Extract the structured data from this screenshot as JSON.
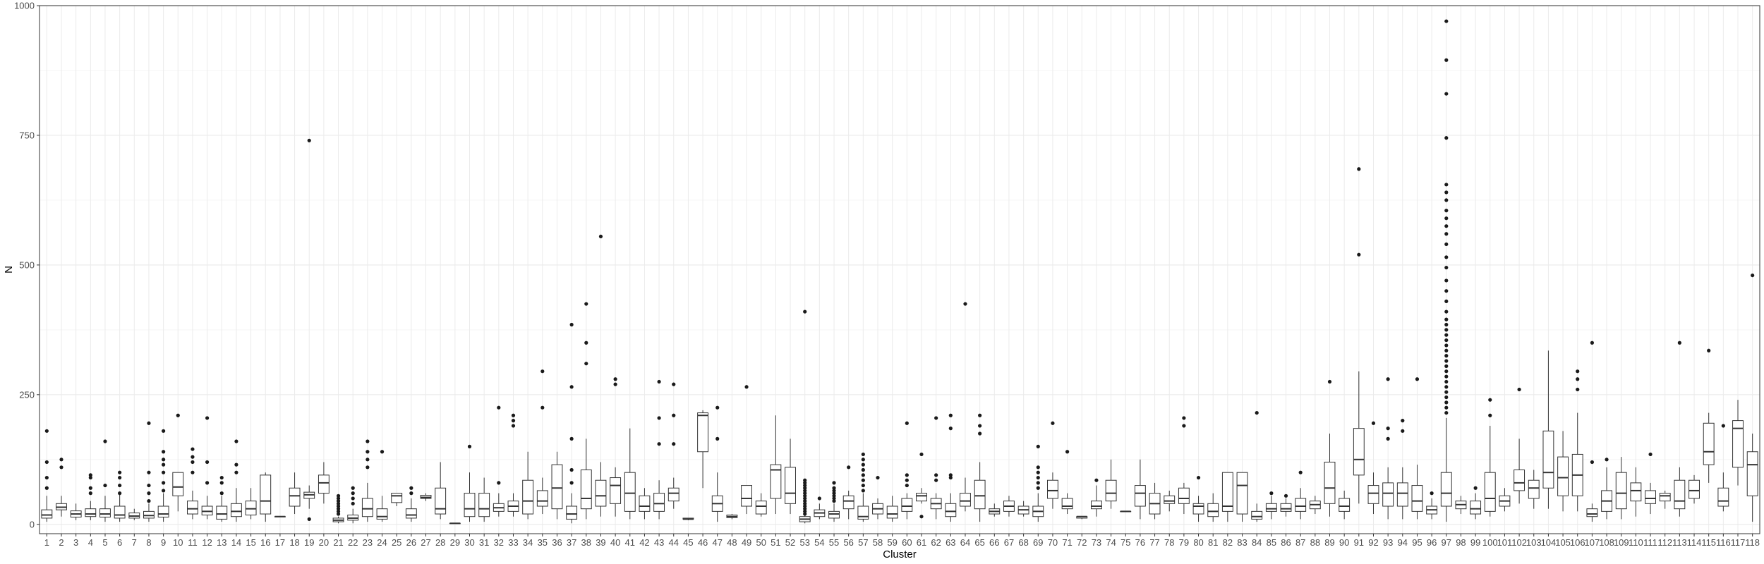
{
  "chart_data": {
    "type": "boxplot",
    "xlabel": "Cluster",
    "ylabel": "N",
    "ylim": [
      -18,
      1000
    ],
    "y_ticks": [
      0,
      250,
      500,
      750,
      1000
    ],
    "grid": true,
    "legend": "none",
    "colors": {
      "box_fill": "#ffffff",
      "box_stroke": "#333333",
      "outlier": "#1a1a1a",
      "grid_major": "#ebebeb",
      "grid_minor": "#f5f5f5",
      "panel_border": "#333333"
    },
    "categories": [
      "1",
      "2",
      "3",
      "4",
      "5",
      "6",
      "7",
      "8",
      "9",
      "10",
      "11",
      "12",
      "13",
      "14",
      "15",
      "16",
      "17",
      "18",
      "19",
      "20",
      "21",
      "22",
      "23",
      "24",
      "25",
      "26",
      "27",
      "28",
      "29",
      "30",
      "31",
      "32",
      "33",
      "34",
      "35",
      "36",
      "37",
      "38",
      "39",
      "40",
      "41",
      "42",
      "43",
      "44",
      "45",
      "46",
      "47",
      "48",
      "49",
      "50",
      "51",
      "52",
      "53",
      "54",
      "55",
      "56",
      "57",
      "58",
      "59",
      "60",
      "61",
      "62",
      "63",
      "64",
      "65",
      "66",
      "67",
      "68",
      "69",
      "70",
      "71",
      "72",
      "73",
      "74",
      "75",
      "76",
      "77",
      "78",
      "79",
      "80",
      "81",
      "82",
      "83",
      "84",
      "85",
      "86",
      "87",
      "88",
      "89",
      "90",
      "91",
      "92",
      "93",
      "94",
      "95",
      "96",
      "97",
      "98",
      "99",
      "100",
      "101",
      "102",
      "103",
      "104",
      "105",
      "106",
      "107",
      "108",
      "109",
      "110",
      "111",
      "112",
      "113",
      "114",
      "115",
      "116",
      "117",
      "118"
    ],
    "boxes": [
      [
        5,
        12,
        18,
        28,
        55,
        [
          120,
          180,
          70,
          90
        ]
      ],
      [
        15,
        28,
        33,
        40,
        55,
        [
          110,
          125
        ]
      ],
      [
        8,
        14,
        20,
        26,
        40,
        []
      ],
      [
        8,
        15,
        20,
        30,
        45,
        [
          60,
          70,
          90,
          95
        ]
      ],
      [
        5,
        14,
        20,
        30,
        55,
        [
          75,
          160
        ]
      ],
      [
        5,
        12,
        18,
        35,
        60,
        [
          60,
          75,
          90,
          100
        ]
      ],
      [
        8,
        12,
        16,
        22,
        30,
        []
      ],
      [
        5,
        12,
        17,
        25,
        40,
        [
          45,
          60,
          75,
          100,
          195
        ]
      ],
      [
        5,
        14,
        20,
        35,
        60,
        [
          65,
          80,
          100,
          115,
          125,
          140,
          180
        ]
      ],
      [
        25,
        55,
        72,
        100,
        100,
        [
          210
        ]
      ],
      [
        10,
        20,
        30,
        45,
        65,
        [
          100,
          120,
          130,
          145
        ]
      ],
      [
        10,
        18,
        25,
        35,
        55,
        [
          80,
          120,
          205
        ]
      ],
      [
        5,
        10,
        20,
        35,
        55,
        [
          60,
          80,
          90
        ]
      ],
      [
        5,
        15,
        25,
        40,
        70,
        [
          100,
          115,
          160
        ]
      ],
      [
        10,
        18,
        30,
        45,
        70,
        []
      ],
      [
        5,
        20,
        45,
        95,
        100,
        []
      ],
      [
        15,
        15,
        15,
        15,
        15,
        []
      ],
      [
        20,
        35,
        55,
        70,
        100,
        []
      ],
      [
        30,
        50,
        57,
        62,
        75,
        [
          10,
          740
        ]
      ],
      [
        40,
        60,
        80,
        95,
        120,
        []
      ],
      [
        2,
        5,
        8,
        12,
        15,
        [
          20,
          25,
          30,
          35,
          40,
          45,
          50,
          55
        ]
      ],
      [
        2,
        8,
        12,
        18,
        30,
        [
          40,
          50,
          60,
          70
        ]
      ],
      [
        5,
        15,
        30,
        50,
        80,
        [
          110,
          125,
          140,
          160
        ]
      ],
      [
        5,
        10,
        15,
        30,
        55,
        [
          140
        ]
      ],
      [
        35,
        42,
        55,
        60,
        60,
        []
      ],
      [
        5,
        12,
        18,
        30,
        50,
        [
          60,
          70
        ]
      ],
      [
        45,
        50,
        52,
        56,
        60,
        []
      ],
      [
        10,
        20,
        30,
        70,
        120,
        []
      ],
      [
        2,
        2,
        2,
        2,
        2,
        []
      ],
      [
        5,
        15,
        30,
        60,
        100,
        [
          150
        ]
      ],
      [
        5,
        15,
        30,
        60,
        90,
        []
      ],
      [
        15,
        25,
        32,
        40,
        60,
        [
          80,
          225
        ]
      ],
      [
        15,
        25,
        35,
        45,
        60,
        [
          190,
          200,
          210
        ]
      ],
      [
        10,
        20,
        45,
        85,
        140,
        []
      ],
      [
        20,
        35,
        45,
        65,
        90,
        [
          225,
          295
        ]
      ],
      [
        10,
        30,
        70,
        115,
        140,
        []
      ],
      [
        2,
        10,
        20,
        35,
        60,
        [
          80,
          105,
          165,
          265,
          385
        ]
      ],
      [
        10,
        30,
        50,
        105,
        165,
        [
          310,
          350,
          425
        ]
      ],
      [
        15,
        35,
        55,
        85,
        120,
        [
          555
        ]
      ],
      [
        15,
        40,
        75,
        90,
        110,
        [
          270,
          280
        ]
      ],
      [
        10,
        25,
        60,
        100,
        185,
        []
      ],
      [
        10,
        25,
        35,
        55,
        70,
        []
      ],
      [
        10,
        25,
        40,
        60,
        85,
        [
          155,
          205,
          275
        ]
      ],
      [
        30,
        45,
        60,
        70,
        90,
        [
          155,
          210,
          270
        ]
      ],
      [
        8,
        10,
        10,
        12,
        12,
        []
      ],
      [
        70,
        140,
        210,
        215,
        220,
        []
      ],
      [
        5,
        25,
        40,
        55,
        100,
        [
          165,
          225
        ]
      ],
      [
        10,
        13,
        15,
        18,
        20,
        []
      ],
      [
        20,
        35,
        50,
        75,
        75,
        [
          265
        ]
      ],
      [
        15,
        20,
        35,
        45,
        60,
        []
      ],
      [
        20,
        50,
        105,
        115,
        210,
        []
      ],
      [
        20,
        40,
        60,
        110,
        165,
        []
      ],
      [
        2,
        5,
        10,
        15,
        30,
        [
          20,
          25,
          30,
          35,
          40,
          45,
          50,
          55,
          60,
          65,
          70,
          75,
          80,
          85,
          410
        ]
      ],
      [
        10,
        15,
        22,
        28,
        40,
        [
          50
        ]
      ],
      [
        5,
        12,
        20,
        25,
        40,
        [
          45,
          50,
          55,
          60,
          65,
          70,
          80
        ]
      ],
      [
        10,
        30,
        45,
        55,
        65,
        [
          110
        ]
      ],
      [
        5,
        10,
        15,
        35,
        60,
        [
          65,
          75,
          85,
          95,
          105,
          115,
          125,
          135
        ]
      ],
      [
        10,
        20,
        30,
        40,
        50,
        [
          90
        ]
      ],
      [
        5,
        12,
        20,
        35,
        55,
        []
      ],
      [
        10,
        25,
        35,
        50,
        60,
        [
          75,
          85,
          95,
          195
        ]
      ],
      [
        40,
        45,
        55,
        60,
        70,
        [
          15,
          135
        ]
      ],
      [
        10,
        30,
        40,
        50,
        60,
        [
          85,
          95,
          205
        ]
      ],
      [
        5,
        15,
        25,
        40,
        60,
        [
          90,
          95,
          185,
          210
        ]
      ],
      [
        25,
        35,
        45,
        60,
        90,
        [
          425
        ]
      ],
      [
        5,
        30,
        55,
        85,
        120,
        [
          175,
          190,
          210
        ]
      ],
      [
        15,
        20,
        25,
        30,
        40,
        []
      ],
      [
        15,
        25,
        35,
        45,
        55,
        []
      ],
      [
        15,
        20,
        28,
        35,
        45,
        []
      ],
      [
        5,
        15,
        25,
        35,
        60,
        [
          70,
          80,
          90,
          100,
          110,
          150
        ]
      ],
      [
        30,
        50,
        65,
        85,
        100,
        [
          195
        ]
      ],
      [
        20,
        30,
        35,
        50,
        60,
        [
          140
        ]
      ],
      [
        10,
        12,
        15,
        15,
        15,
        []
      ],
      [
        15,
        30,
        35,
        45,
        75,
        [
          85
        ]
      ],
      [
        30,
        45,
        60,
        85,
        125,
        []
      ],
      [
        25,
        25,
        25,
        25,
        25,
        []
      ],
      [
        10,
        35,
        60,
        75,
        125,
        []
      ],
      [
        10,
        20,
        40,
        60,
        80,
        []
      ],
      [
        25,
        40,
        45,
        55,
        65,
        []
      ],
      [
        20,
        40,
        50,
        70,
        80,
        [
          190,
          205
        ]
      ],
      [
        5,
        20,
        35,
        40,
        55,
        [
          90
        ]
      ],
      [
        5,
        15,
        25,
        40,
        60,
        []
      ],
      [
        5,
        25,
        35,
        100,
        100,
        []
      ],
      [
        5,
        20,
        75,
        100,
        100,
        []
      ],
      [
        5,
        10,
        15,
        25,
        40,
        [
          215
        ]
      ],
      [
        10,
        25,
        30,
        40,
        55,
        [
          60
        ]
      ],
      [
        15,
        25,
        30,
        40,
        50,
        [
          55
        ]
      ],
      [
        10,
        25,
        35,
        50,
        70,
        [
          100
        ]
      ],
      [
        20,
        30,
        38,
        45,
        55,
        []
      ],
      [
        15,
        40,
        70,
        120,
        175,
        [
          275
        ]
      ],
      [
        10,
        25,
        35,
        50,
        65,
        []
      ],
      [
        40,
        95,
        125,
        185,
        295,
        [
          520,
          685
        ]
      ],
      [
        20,
        40,
        60,
        75,
        100,
        [
          195
        ]
      ],
      [
        10,
        35,
        60,
        80,
        110,
        [
          165,
          185,
          280
        ]
      ],
      [
        10,
        35,
        60,
        80,
        110,
        [
          180,
          200
        ]
      ],
      [
        10,
        25,
        45,
        75,
        115,
        [
          280
        ]
      ],
      [
        10,
        20,
        28,
        35,
        50,
        [
          60
        ]
      ],
      [
        5,
        35,
        60,
        100,
        205,
        [
          215,
          225,
          235,
          245,
          255,
          265,
          275,
          285,
          295,
          305,
          315,
          325,
          335,
          345,
          355,
          365,
          375,
          385,
          395,
          410,
          430,
          450,
          470,
          495,
          515,
          540,
          560,
          575,
          590,
          605,
          625,
          640,
          655,
          745,
          830,
          895,
          970
        ]
      ],
      [
        20,
        30,
        38,
        45,
        55,
        []
      ],
      [
        10,
        20,
        30,
        45,
        60,
        [
          70
        ]
      ],
      [
        15,
        25,
        50,
        100,
        190,
        [
          210,
          240
        ]
      ],
      [
        25,
        35,
        45,
        55,
        70,
        []
      ],
      [
        40,
        65,
        80,
        105,
        165,
        [
          260
        ]
      ],
      [
        30,
        50,
        70,
        85,
        105,
        []
      ],
      [
        30,
        70,
        100,
        180,
        335,
        []
      ],
      [
        25,
        55,
        90,
        130,
        180,
        []
      ],
      [
        25,
        55,
        95,
        135,
        215,
        [
          260,
          280,
          295
        ]
      ],
      [
        5,
        15,
        20,
        30,
        40,
        [
          120,
          350
        ]
      ],
      [
        10,
        25,
        45,
        65,
        110,
        [
          125
        ]
      ],
      [
        10,
        30,
        60,
        100,
        130,
        []
      ],
      [
        15,
        45,
        65,
        80,
        110,
        []
      ],
      [
        20,
        40,
        50,
        65,
        80,
        [
          135
        ]
      ],
      [
        30,
        45,
        55,
        60,
        65,
        []
      ],
      [
        15,
        30,
        45,
        85,
        110,
        [
          350
        ]
      ],
      [
        40,
        50,
        65,
        85,
        95,
        []
      ],
      [
        80,
        115,
        140,
        195,
        215,
        [
          335
        ]
      ],
      [
        25,
        35,
        45,
        70,
        100,
        [
          190
        ]
      ],
      [
        75,
        110,
        185,
        200,
        240,
        []
      ],
      [
        5,
        55,
        115,
        140,
        175,
        [
          480
        ]
      ]
    ]
  }
}
